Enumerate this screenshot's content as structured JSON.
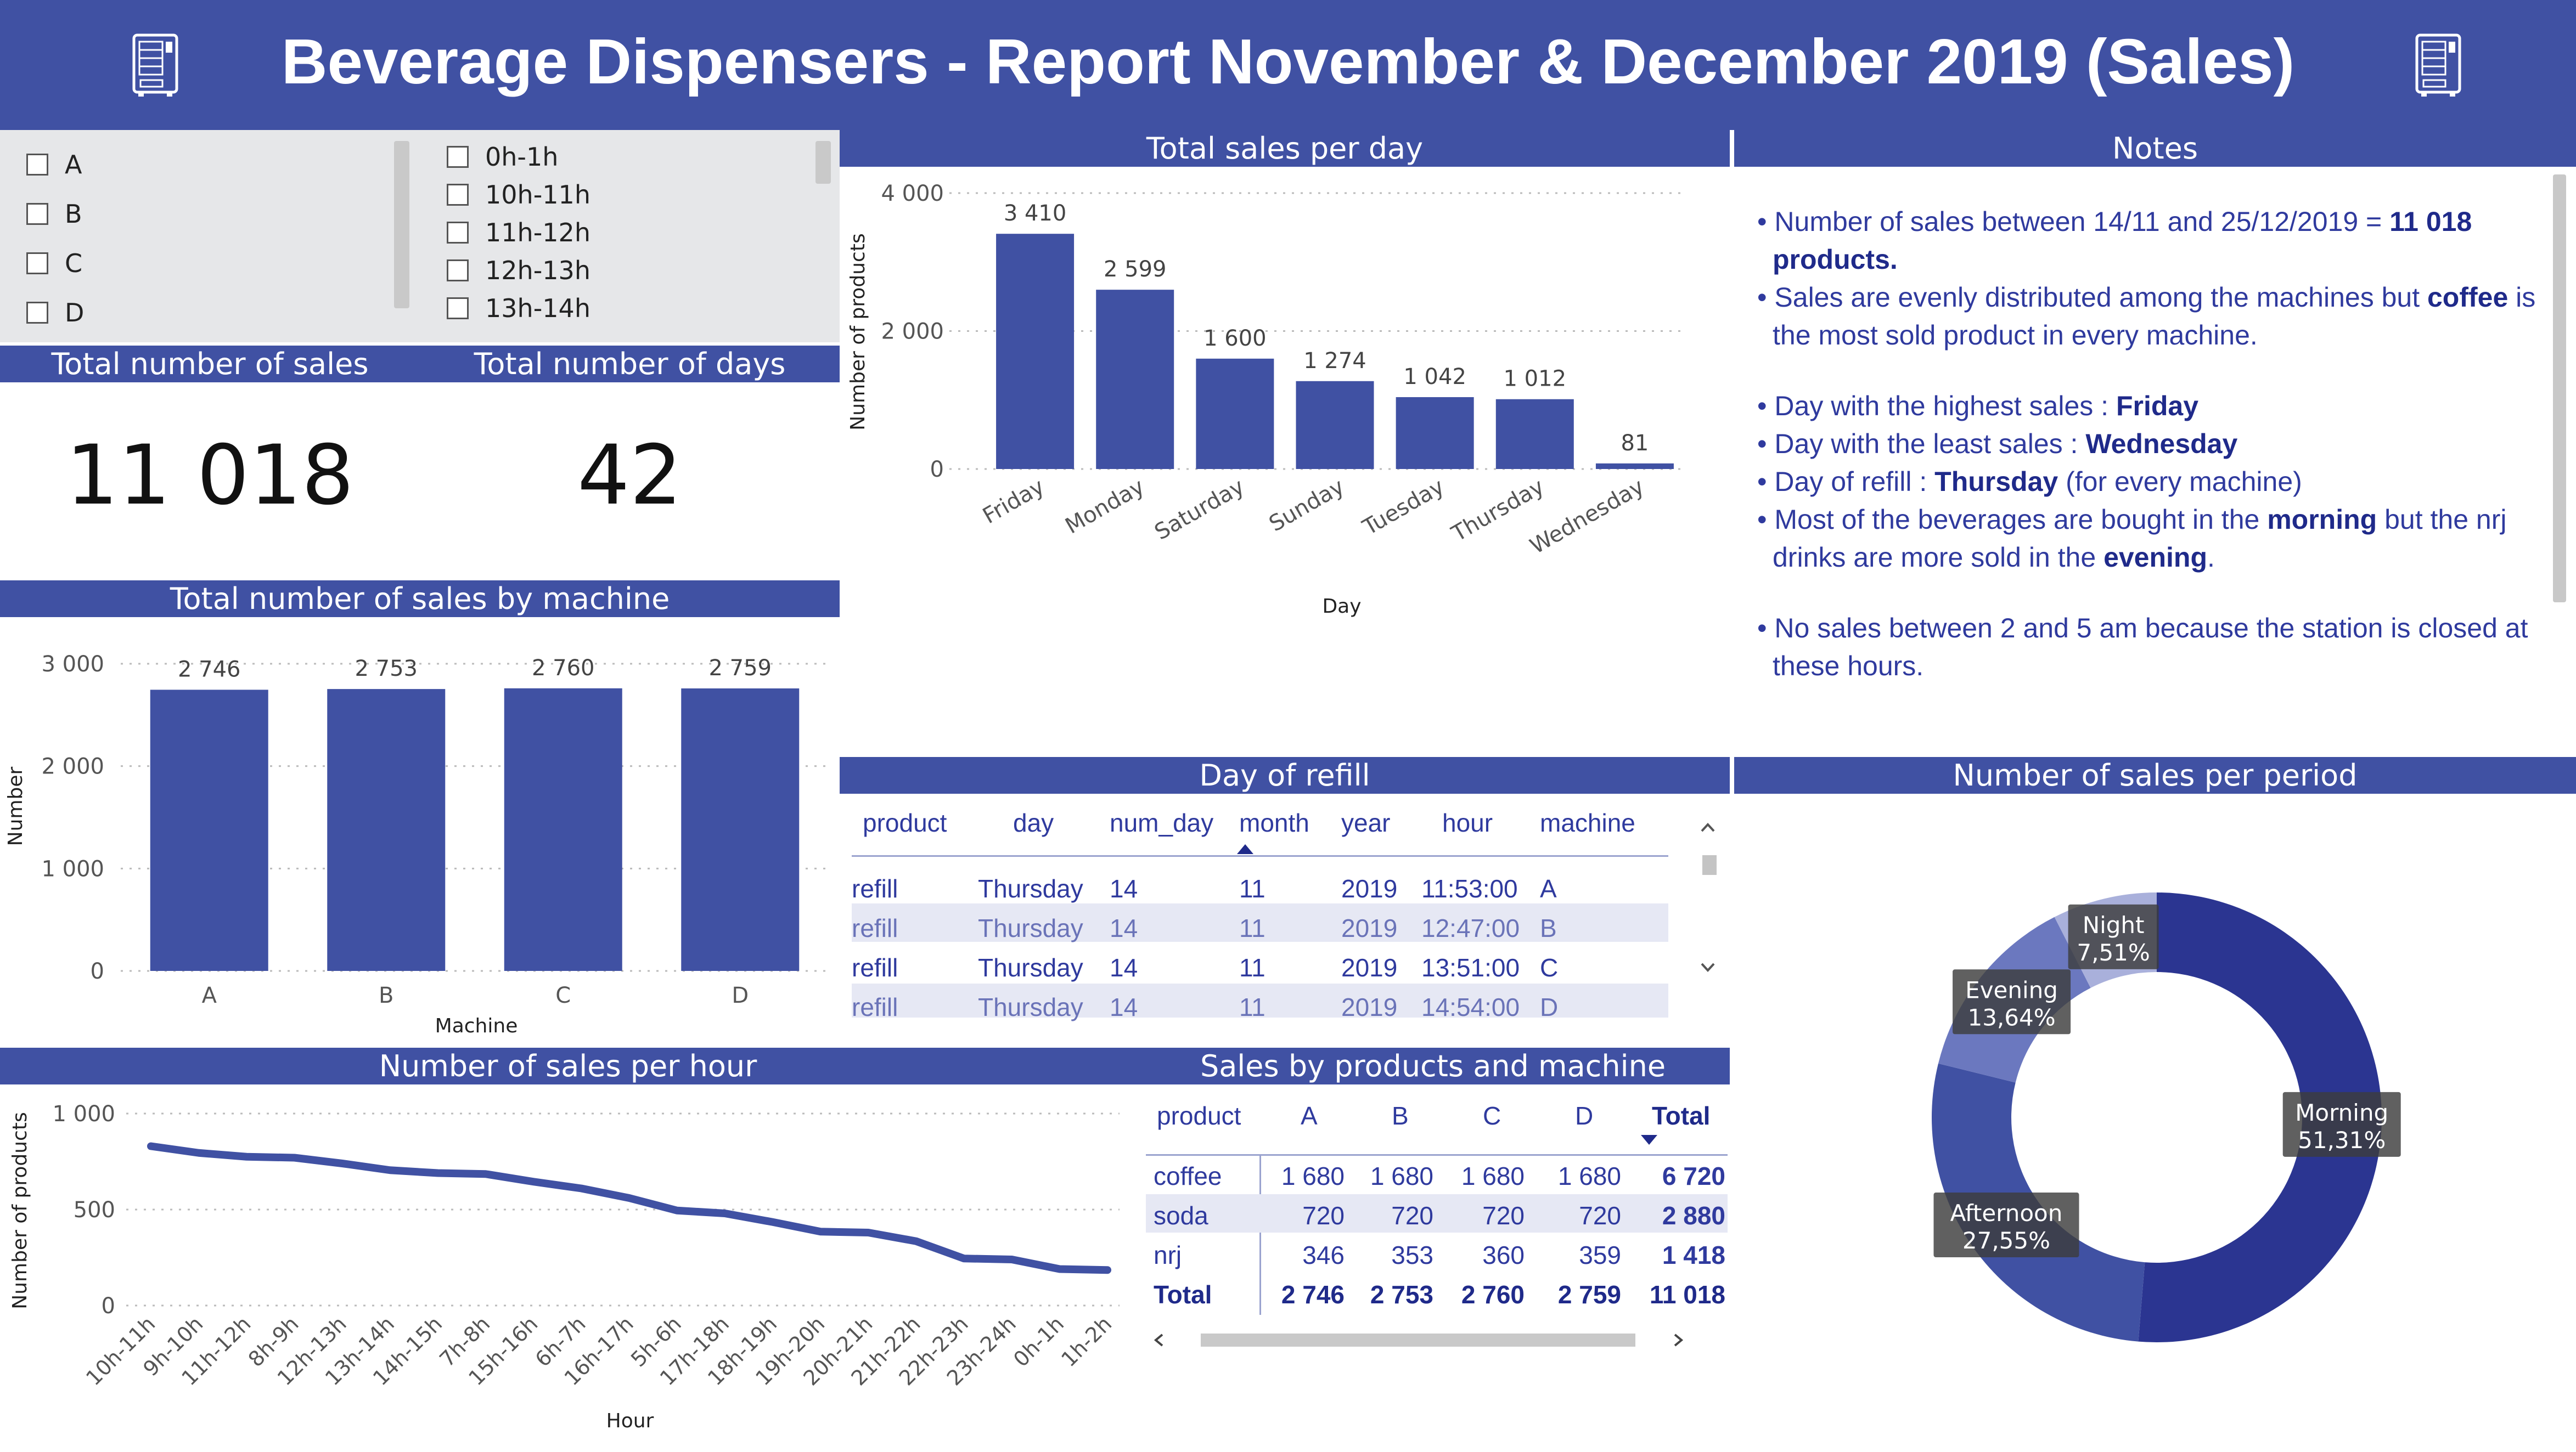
{
  "banner": {
    "title": "Beverage Dispensers - Report November & December 2019 (Sales)"
  },
  "slicer_machine": {
    "items": [
      "A",
      "B",
      "C",
      "D"
    ]
  },
  "slicer_hour": {
    "items": [
      "0h-1h",
      "10h-11h",
      "11h-12h",
      "12h-13h",
      "13h-14h"
    ]
  },
  "kpi": {
    "sales_label": "Total number of sales",
    "sales_value": "11 018",
    "days_label": "Total number of days",
    "days_value": "42"
  },
  "sales_per_day": {
    "title": "Total sales per day",
    "xlabel": "Day",
    "ylabel": "Number of products",
    "ticks": [
      "0",
      "2 000",
      "4 000"
    ]
  },
  "notes": {
    "title": "Notes",
    "lines": {
      "l1a": "Number of sales between 14/11 and 25/12/2019 = ",
      "l1b": "11 018 products.",
      "l2a": "Sales are evenly distributed among the machines but ",
      "l2b": "coffee",
      "l2c": " is the most sold product in every machine.",
      "l3a": "Day with the highest sales : ",
      "l3b": "Friday",
      "l4a": "Day with the least sales : ",
      "l4b": "Wednesday",
      "l5a": "Day of refill : ",
      "l5b": "Thursday",
      "l5c": " (for every machine)",
      "l6a": "Most of the beverages are bought in the ",
      "l6b": "morning",
      "l6c": " but the nrj drinks are more sold in the ",
      "l6d": "evening",
      "l6e": ".",
      "l7": "No sales between 2 and 5 am because the station is closed at these hours."
    }
  },
  "sales_by_machine": {
    "title": "Total number of sales by machine",
    "xlabel": "Machine",
    "ylabel": "Number",
    "ticks": [
      "0",
      "1 000",
      "2 000",
      "3 000"
    ]
  },
  "refill": {
    "title": "Day of refill",
    "headers": [
      "product",
      "day",
      "num_day",
      "month",
      "year",
      "hour",
      "machine"
    ],
    "rows": [
      [
        "refill",
        "Thursday",
        "14",
        "11",
        "2019",
        "11:53:00",
        "A"
      ],
      [
        "refill",
        "Thursday",
        "14",
        "11",
        "2019",
        "12:47:00",
        "B"
      ],
      [
        "refill",
        "Thursday",
        "14",
        "11",
        "2019",
        "13:51:00",
        "C"
      ],
      [
        "refill",
        "Thursday",
        "14",
        "11",
        "2019",
        "14:54:00",
        "D"
      ]
    ]
  },
  "sales_per_period": {
    "title": "Number of sales per period"
  },
  "sales_per_hour": {
    "title": "Number of sales per hour",
    "xlabel": "Hour",
    "ylabel": "Number of products",
    "ticks": [
      "0",
      "500",
      "1 000"
    ]
  },
  "products_machine": {
    "title": "Sales by products and machine",
    "headers": [
      "product",
      "A",
      "B",
      "C",
      "D",
      "Total"
    ],
    "rows": [
      [
        "coffee",
        "1 680",
        "1 680",
        "1 680",
        "1 680",
        "6 720"
      ],
      [
        "soda",
        "720",
        "720",
        "720",
        "720",
        "2 880"
      ],
      [
        "nrj",
        "346",
        "353",
        "360",
        "359",
        "1 418"
      ]
    ],
    "total_row": [
      "Total",
      "2 746",
      "2 753",
      "2 760",
      "2 759",
      "11 018"
    ]
  },
  "colors": {
    "accent": "#4051a3",
    "banner_text": "#ffffff",
    "text_blue": "#2f3a9e"
  },
  "chart_data": [
    {
      "type": "bar",
      "title": "Total sales per day",
      "xlabel": "Day",
      "ylabel": "Number of products",
      "categories": [
        "Friday",
        "Monday",
        "Saturday",
        "Sunday",
        "Tuesday",
        "Thursday",
        "Wednesday"
      ],
      "values": [
        3410,
        2599,
        1600,
        1274,
        1042,
        1012,
        81
      ],
      "labels": [
        "3 410",
        "2 599",
        "1 600",
        "1 274",
        "1 042",
        "1 012",
        "81"
      ],
      "ylim": [
        0,
        4000
      ],
      "grid": true
    },
    {
      "type": "bar",
      "title": "Total number of sales by machine",
      "xlabel": "Machine",
      "ylabel": "Number",
      "categories": [
        "A",
        "B",
        "C",
        "D"
      ],
      "values": [
        2746,
        2753,
        2760,
        2759
      ],
      "labels": [
        "2 746",
        "2 753",
        "2 760",
        "2 759"
      ],
      "ylim": [
        0,
        3000
      ],
      "grid": true
    },
    {
      "type": "line",
      "title": "Number of sales per hour",
      "xlabel": "Hour",
      "ylabel": "Number of products",
      "categories": [
        "10h-11h",
        "9h-10h",
        "11h-12h",
        "8h-9h",
        "12h-13h",
        "13h-14h",
        "14h-15h",
        "7h-8h",
        "15h-16h",
        "6h-7h",
        "16h-17h",
        "5h-6h",
        "17h-18h",
        "18h-19h",
        "19h-20h",
        "20h-21h",
        "21h-22h",
        "22h-23h",
        "23h-24h",
        "0h-1h",
        "1h-2h"
      ],
      "values": [
        830,
        795,
        775,
        770,
        740,
        705,
        690,
        685,
        645,
        610,
        560,
        495,
        480,
        435,
        385,
        380,
        335,
        245,
        240,
        190,
        185
      ],
      "ylim": [
        0,
        1000
      ],
      "grid": true
    },
    {
      "type": "pie",
      "title": "Number of sales per period",
      "donut": true,
      "labels": [
        "Morning",
        "Afternoon",
        "Evening",
        "Night"
      ],
      "values": [
        51.31,
        27.55,
        13.64,
        7.51
      ],
      "value_labels": [
        "51,31%",
        "27,55%",
        "13,64%",
        "7,51%"
      ],
      "colors": [
        "#2b3591",
        "#4051a3",
        "#6b78bf",
        "#a9b0db"
      ]
    }
  ]
}
